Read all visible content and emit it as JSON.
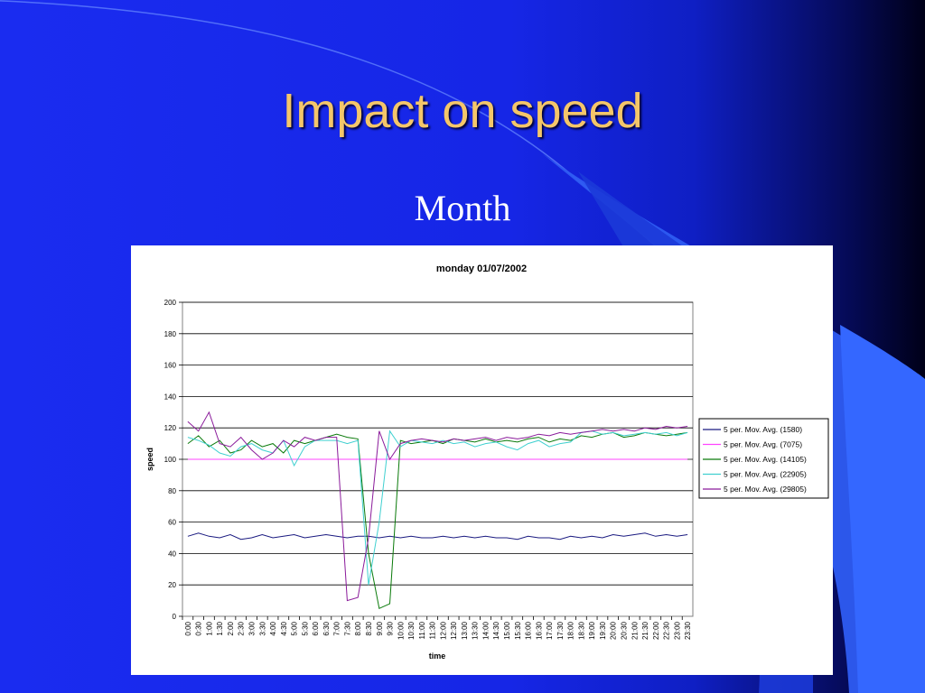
{
  "slide": {
    "title": "Impact on speed",
    "subtitle": "Month"
  },
  "colors": {
    "title": "#f4c66a",
    "background": "#1a2cf0"
  },
  "chart_data": {
    "type": "line",
    "title": "monday 01/07/2002",
    "xlabel": "time",
    "ylabel": "speed",
    "ylim": [
      0,
      200
    ],
    "yticks": [
      0,
      20,
      40,
      60,
      80,
      100,
      120,
      140,
      160,
      180,
      200
    ],
    "grid": true,
    "legend_position": "right",
    "x": [
      "0:00",
      "0:30",
      "1:00",
      "1:30",
      "2:00",
      "2:30",
      "3:00",
      "3:30",
      "4:00",
      "4:30",
      "5:00",
      "5:30",
      "6:00",
      "6:30",
      "7:00",
      "7:30",
      "8:00",
      "8:30",
      "9:00",
      "9:30",
      "10:00",
      "10:30",
      "11:00",
      "11:30",
      "12:00",
      "12:30",
      "13:00",
      "13:30",
      "14:00",
      "14:30",
      "15:00",
      "15:30",
      "16:00",
      "16:30",
      "17:00",
      "17:30",
      "18:00",
      "18:30",
      "19:00",
      "19:30",
      "20:00",
      "20:30",
      "21:00",
      "21:30",
      "22:00",
      "22:30",
      "23:00",
      "23:30"
    ],
    "series": [
      {
        "name": "5 per. Mov. Avg. (1580)",
        "color": "#1a1a80",
        "values": [
          51,
          53,
          51,
          50,
          52,
          49,
          50,
          52,
          50,
          51,
          52,
          50,
          51,
          52,
          51,
          50,
          51,
          51,
          50,
          51,
          50,
          51,
          50,
          50,
          51,
          50,
          51,
          50,
          51,
          50,
          50,
          49,
          51,
          50,
          50,
          49,
          51,
          50,
          51,
          50,
          52,
          51,
          52,
          53,
          51,
          52,
          51,
          52
        ]
      },
      {
        "name": "5 per. Mov. Avg. (7075)",
        "color": "#ff44ff",
        "values": [
          100,
          100,
          100,
          100,
          100,
          100,
          100,
          100,
          100,
          100,
          100,
          100,
          100,
          100,
          100,
          100,
          100,
          100,
          100,
          100,
          100,
          100,
          100,
          100,
          100,
          100,
          100,
          100,
          100,
          100,
          100,
          100,
          100,
          100,
          100,
          100,
          100,
          100,
          100,
          100,
          100,
          100,
          100,
          100,
          100,
          100,
          100,
          100
        ]
      },
      {
        "name": "5 per. Mov. Avg. (14105)",
        "color": "#0a7a0a",
        "values": [
          110,
          115,
          108,
          112,
          104,
          106,
          112,
          108,
          110,
          104,
          112,
          110,
          112,
          114,
          116,
          114,
          113,
          40,
          5,
          8,
          112,
          110,
          111,
          112,
          110,
          113,
          112,
          111,
          113,
          111,
          112,
          111,
          113,
          114,
          111,
          113,
          112,
          115,
          114,
          116,
          117,
          114,
          115,
          117,
          116,
          115,
          116,
          117
        ]
      },
      {
        "name": "5 per. Mov. Avg. (22905)",
        "color": "#40d0d0",
        "values": [
          114,
          112,
          109,
          104,
          102,
          108,
          110,
          106,
          104,
          112,
          96,
          108,
          112,
          112,
          112,
          110,
          112,
          20,
          60,
          118,
          108,
          112,
          111,
          110,
          112,
          110,
          111,
          108,
          110,
          111,
          108,
          106,
          110,
          112,
          108,
          110,
          111,
          117,
          118,
          116,
          117,
          115,
          116,
          117,
          116,
          117,
          115,
          117
        ]
      },
      {
        "name": "5 per. Mov. Avg. (29805)",
        "color": "#8a1a9a",
        "values": [
          124,
          118,
          130,
          110,
          108,
          114,
          106,
          100,
          104,
          112,
          108,
          114,
          112,
          114,
          114,
          10,
          12,
          50,
          118,
          100,
          110,
          112,
          113,
          112,
          111,
          113,
          112,
          113,
          114,
          112,
          114,
          113,
          114,
          116,
          115,
          117,
          116,
          117,
          118,
          119,
          118,
          119,
          118,
          120,
          119,
          121,
          120,
          121
        ]
      }
    ]
  }
}
